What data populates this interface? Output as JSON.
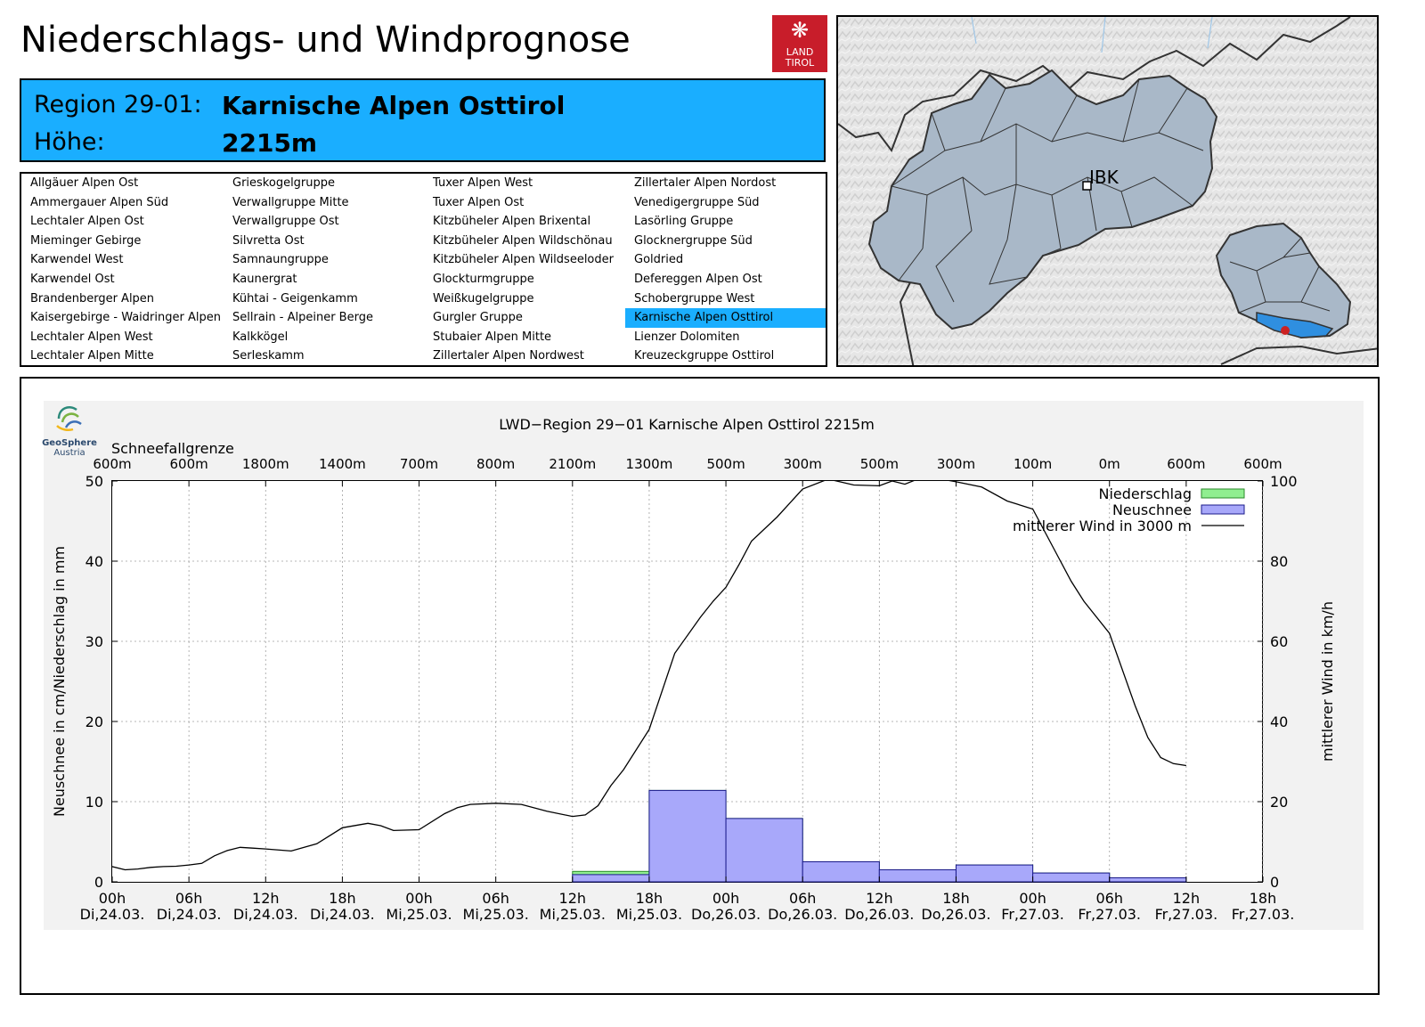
{
  "header": {
    "title": "Niederschlags- und Windprognose",
    "logo_line1": "LAND",
    "logo_line2": "TIROL"
  },
  "region": {
    "label_region": "Region 29-01:",
    "name": "Karnische Alpen Osttirol",
    "label_height": "Höhe:",
    "height": "2215m"
  },
  "region_list": {
    "columns": [
      [
        "Allgäuer Alpen Ost",
        "Ammergauer Alpen Süd",
        "Lechtaler Alpen Ost",
        "Mieminger Gebirge",
        "Karwendel West",
        "Karwendel Ost",
        "Brandenberger Alpen",
        "Kaisergebirge - Waidringer Alpen",
        "Lechtaler Alpen West",
        "Lechtaler Alpen Mitte"
      ],
      [
        "Grieskogelgruppe",
        "Verwallgruppe Mitte",
        "Verwallgruppe Ost",
        "Silvretta Ost",
        "Samnaungruppe",
        "Kaunergrat",
        "Kühtai - Geigenkamm",
        "Sellrain - Alpeiner Berge",
        "Kalkkögel",
        "Serleskamm"
      ],
      [
        "Tuxer Alpen West",
        "Tuxer Alpen Ost",
        "Kitzbüheler Alpen Brixental",
        "Kitzbüheler Alpen Wildschönau",
        "Kitzbüheler Alpen Wildseeloder",
        "Glockturmgruppe",
        "Weißkugelgruppe",
        "Gurgler Gruppe",
        "Stubaier Alpen Mitte",
        "Zillertaler Alpen Nordwest"
      ],
      [
        "Zillertaler Alpen Nordost",
        "Venedigergruppe Süd",
        "Lasörling Gruppe",
        "Glocknergruppe Süd",
        "Goldried",
        "Defereggen Alpen Ost",
        "Schobergruppe West",
        "Karnische Alpen Osttirol",
        "Lienzer Dolomiten",
        "Kreuzeckgruppe Osttirol"
      ]
    ],
    "selected": "Karnische Alpen Osttirol"
  },
  "map": {
    "city_label": "IBK",
    "region_fill": "#aab8c8",
    "selected_fill": "#2f8fe0",
    "marker_color": "#cc2222"
  },
  "geosphere": {
    "name": "GeoSphere",
    "country": "Austria"
  },
  "colors": {
    "accent": "#1aaeff",
    "niederschlag": "#90ee90",
    "neuschnee": "#a8a8fa",
    "wind": "#000000"
  },
  "chart_data": {
    "type": "bar",
    "title": "LWD−Region 29−01 Karnische Alpen Osttirol 2215m",
    "snowline_label": "Schneefallgrenze",
    "snowline": [
      "600m",
      "600m",
      "1800m",
      "1400m",
      "700m",
      "800m",
      "2100m",
      "1300m",
      "500m",
      "300m",
      "500m",
      "300m",
      "100m",
      "0m",
      "600m",
      "600m"
    ],
    "x_time": [
      "00h",
      "06h",
      "12h",
      "18h",
      "00h",
      "06h",
      "12h",
      "18h",
      "00h",
      "06h",
      "12h",
      "18h",
      "00h",
      "06h",
      "12h",
      "18h"
    ],
    "x_date": [
      "Di,24.03.",
      "Di,24.03.",
      "Di,24.03.",
      "Di,24.03.",
      "Mi,25.03.",
      "Mi,25.03.",
      "Mi,25.03.",
      "Mi,25.03.",
      "Do,26.03.",
      "Do,26.03.",
      "Do,26.03.",
      "Do,26.03.",
      "Fr,27.03.",
      "Fr,27.03.",
      "Fr,27.03.",
      "Fr,27.03."
    ],
    "ylabel": "Neuschnee in cm/Niederschlag in mm",
    "y2label": "mittlerer Wind in km/h",
    "ylim": [
      0,
      50
    ],
    "y2lim": [
      0,
      100
    ],
    "y_ticks": [
      0,
      10,
      20,
      30,
      40,
      50
    ],
    "y2_ticks": [
      0,
      20,
      40,
      60,
      80,
      100
    ],
    "legend": [
      "Niederschlag",
      "Neuschnee",
      "mittlerer Wind in 3000 m"
    ],
    "legend_position": "top-right",
    "niederschlag_bars": [
      {
        "from_h": 36,
        "to_h": 42,
        "value": 1.3
      },
      {
        "from_h": 42,
        "to_h": 48,
        "value": 11.4
      },
      {
        "from_h": 48,
        "to_h": 54,
        "value": 7.9
      },
      {
        "from_h": 54,
        "to_h": 60,
        "value": 2.5
      },
      {
        "from_h": 60,
        "to_h": 66,
        "value": 1.5
      },
      {
        "from_h": 66,
        "to_h": 72,
        "value": 2.1
      },
      {
        "from_h": 72,
        "to_h": 78,
        "value": 1.1
      },
      {
        "from_h": 78,
        "to_h": 84,
        "value": 0.5
      }
    ],
    "neuschnee_bars": [
      {
        "from_h": 36,
        "to_h": 42,
        "value": 0.9
      },
      {
        "from_h": 42,
        "to_h": 48,
        "value": 11.4
      },
      {
        "from_h": 48,
        "to_h": 54,
        "value": 7.9
      },
      {
        "from_h": 54,
        "to_h": 60,
        "value": 2.5
      },
      {
        "from_h": 60,
        "to_h": 66,
        "value": 1.5
      },
      {
        "from_h": 66,
        "to_h": 72,
        "value": 2.1
      },
      {
        "from_h": 72,
        "to_h": 78,
        "value": 1.1
      },
      {
        "from_h": 78,
        "to_h": 84,
        "value": 0.5
      }
    ],
    "wind": {
      "hours": [
        0,
        1,
        2,
        3,
        4,
        5,
        6,
        7,
        8,
        9,
        10,
        11,
        12,
        14,
        16,
        18,
        20,
        21,
        22,
        24,
        26,
        27,
        28,
        30,
        32,
        34,
        36,
        37,
        38,
        39,
        40,
        42,
        44,
        46,
        47,
        48,
        49,
        50,
        52,
        54,
        56,
        58,
        60,
        61,
        62,
        63,
        64,
        66,
        68,
        70,
        72,
        74,
        75,
        76,
        78,
        80,
        81,
        82,
        83,
        84
      ],
      "values": [
        3.8,
        3.0,
        3.2,
        3.6,
        3.8,
        3.9,
        4.2,
        4.6,
        6.5,
        7.8,
        8.6,
        8.4,
        8.2,
        7.7,
        9.5,
        13.5,
        14.6,
        14.0,
        12.8,
        13.0,
        17.0,
        18.5,
        19.3,
        19.6,
        19.3,
        17.6,
        16.3,
        16.7,
        19.0,
        24.0,
        28.0,
        38.0,
        57.0,
        66.0,
        70.0,
        73.5,
        79.0,
        85.0,
        91.0,
        98.0,
        100.5,
        99.0,
        98.8,
        100.0,
        99.2,
        100.5,
        101.0,
        99.8,
        98.5,
        95.0,
        93.0,
        81.0,
        75.0,
        70.0,
        62.0,
        44.0,
        36.0,
        31.0,
        29.5,
        29.0
      ]
    }
  }
}
